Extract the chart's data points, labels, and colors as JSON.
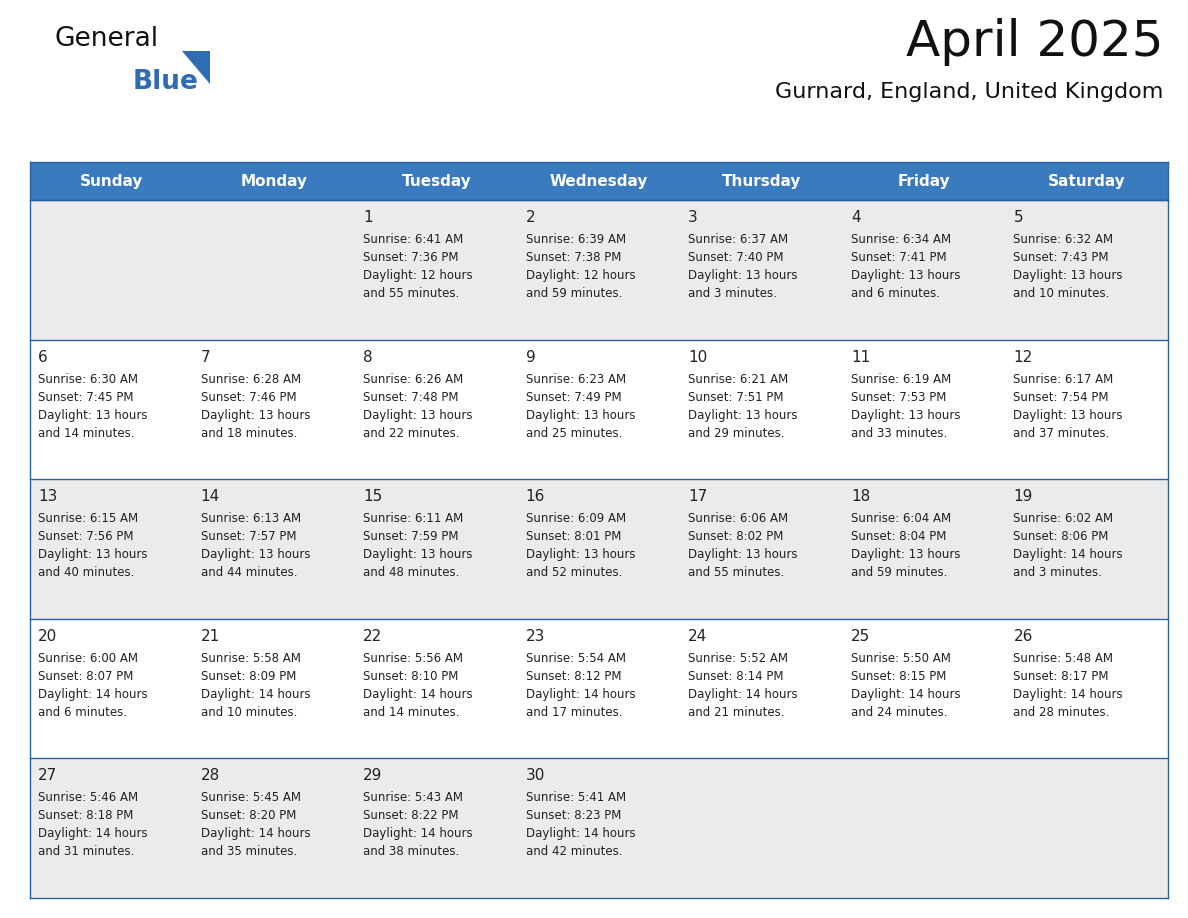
{
  "title": "April 2025",
  "subtitle": "Gurnard, England, United Kingdom",
  "header_color": "#3a7abf",
  "header_text_color": "#ffffff",
  "cell_bg_light": "#ebebeb",
  "cell_bg_white": "#ffffff",
  "row_line_color": "#2e5f9e",
  "outer_line_color": "#2e5f9e",
  "text_color": "#222222",
  "day_headers": [
    "Sunday",
    "Monday",
    "Tuesday",
    "Wednesday",
    "Thursday",
    "Friday",
    "Saturday"
  ],
  "weeks": [
    [
      {
        "day": "",
        "info": ""
      },
      {
        "day": "",
        "info": ""
      },
      {
        "day": "1",
        "info": "Sunrise: 6:41 AM\nSunset: 7:36 PM\nDaylight: 12 hours\nand 55 minutes."
      },
      {
        "day": "2",
        "info": "Sunrise: 6:39 AM\nSunset: 7:38 PM\nDaylight: 12 hours\nand 59 minutes."
      },
      {
        "day": "3",
        "info": "Sunrise: 6:37 AM\nSunset: 7:40 PM\nDaylight: 13 hours\nand 3 minutes."
      },
      {
        "day": "4",
        "info": "Sunrise: 6:34 AM\nSunset: 7:41 PM\nDaylight: 13 hours\nand 6 minutes."
      },
      {
        "day": "5",
        "info": "Sunrise: 6:32 AM\nSunset: 7:43 PM\nDaylight: 13 hours\nand 10 minutes."
      }
    ],
    [
      {
        "day": "6",
        "info": "Sunrise: 6:30 AM\nSunset: 7:45 PM\nDaylight: 13 hours\nand 14 minutes."
      },
      {
        "day": "7",
        "info": "Sunrise: 6:28 AM\nSunset: 7:46 PM\nDaylight: 13 hours\nand 18 minutes."
      },
      {
        "day": "8",
        "info": "Sunrise: 6:26 AM\nSunset: 7:48 PM\nDaylight: 13 hours\nand 22 minutes."
      },
      {
        "day": "9",
        "info": "Sunrise: 6:23 AM\nSunset: 7:49 PM\nDaylight: 13 hours\nand 25 minutes."
      },
      {
        "day": "10",
        "info": "Sunrise: 6:21 AM\nSunset: 7:51 PM\nDaylight: 13 hours\nand 29 minutes."
      },
      {
        "day": "11",
        "info": "Sunrise: 6:19 AM\nSunset: 7:53 PM\nDaylight: 13 hours\nand 33 minutes."
      },
      {
        "day": "12",
        "info": "Sunrise: 6:17 AM\nSunset: 7:54 PM\nDaylight: 13 hours\nand 37 minutes."
      }
    ],
    [
      {
        "day": "13",
        "info": "Sunrise: 6:15 AM\nSunset: 7:56 PM\nDaylight: 13 hours\nand 40 minutes."
      },
      {
        "day": "14",
        "info": "Sunrise: 6:13 AM\nSunset: 7:57 PM\nDaylight: 13 hours\nand 44 minutes."
      },
      {
        "day": "15",
        "info": "Sunrise: 6:11 AM\nSunset: 7:59 PM\nDaylight: 13 hours\nand 48 minutes."
      },
      {
        "day": "16",
        "info": "Sunrise: 6:09 AM\nSunset: 8:01 PM\nDaylight: 13 hours\nand 52 minutes."
      },
      {
        "day": "17",
        "info": "Sunrise: 6:06 AM\nSunset: 8:02 PM\nDaylight: 13 hours\nand 55 minutes."
      },
      {
        "day": "18",
        "info": "Sunrise: 6:04 AM\nSunset: 8:04 PM\nDaylight: 13 hours\nand 59 minutes."
      },
      {
        "day": "19",
        "info": "Sunrise: 6:02 AM\nSunset: 8:06 PM\nDaylight: 14 hours\nand 3 minutes."
      }
    ],
    [
      {
        "day": "20",
        "info": "Sunrise: 6:00 AM\nSunset: 8:07 PM\nDaylight: 14 hours\nand 6 minutes."
      },
      {
        "day": "21",
        "info": "Sunrise: 5:58 AM\nSunset: 8:09 PM\nDaylight: 14 hours\nand 10 minutes."
      },
      {
        "day": "22",
        "info": "Sunrise: 5:56 AM\nSunset: 8:10 PM\nDaylight: 14 hours\nand 14 minutes."
      },
      {
        "day": "23",
        "info": "Sunrise: 5:54 AM\nSunset: 8:12 PM\nDaylight: 14 hours\nand 17 minutes."
      },
      {
        "day": "24",
        "info": "Sunrise: 5:52 AM\nSunset: 8:14 PM\nDaylight: 14 hours\nand 21 minutes."
      },
      {
        "day": "25",
        "info": "Sunrise: 5:50 AM\nSunset: 8:15 PM\nDaylight: 14 hours\nand 24 minutes."
      },
      {
        "day": "26",
        "info": "Sunrise: 5:48 AM\nSunset: 8:17 PM\nDaylight: 14 hours\nand 28 minutes."
      }
    ],
    [
      {
        "day": "27",
        "info": "Sunrise: 5:46 AM\nSunset: 8:18 PM\nDaylight: 14 hours\nand 31 minutes."
      },
      {
        "day": "28",
        "info": "Sunrise: 5:45 AM\nSunset: 8:20 PM\nDaylight: 14 hours\nand 35 minutes."
      },
      {
        "day": "29",
        "info": "Sunrise: 5:43 AM\nSunset: 8:22 PM\nDaylight: 14 hours\nand 38 minutes."
      },
      {
        "day": "30",
        "info": "Sunrise: 5:41 AM\nSunset: 8:23 PM\nDaylight: 14 hours\nand 42 minutes."
      },
      {
        "day": "",
        "info": ""
      },
      {
        "day": "",
        "info": ""
      },
      {
        "day": "",
        "info": ""
      }
    ]
  ],
  "logo_color1": "#111111",
  "logo_color2": "#2e6db4",
  "logo_tri_color": "#2e6db4",
  "title_fontsize": 36,
  "subtitle_fontsize": 16,
  "header_fontsize": 11,
  "day_num_fontsize": 11,
  "info_fontsize": 8.5
}
